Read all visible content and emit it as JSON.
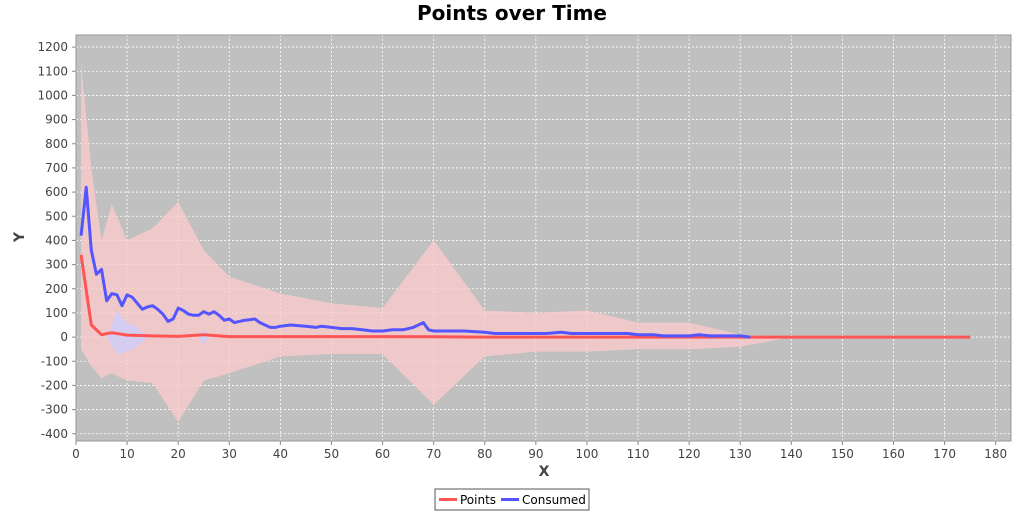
{
  "chart_data": {
    "type": "line",
    "title": "Points over Time",
    "xlabel": "X",
    "ylabel": "Y",
    "xlim": [
      0,
      183
    ],
    "ylim": [
      -430,
      1250
    ],
    "x_ticks": [
      0,
      10,
      20,
      30,
      40,
      50,
      60,
      70,
      80,
      90,
      100,
      110,
      120,
      130,
      140,
      150,
      160,
      170,
      180
    ],
    "y_ticks": [
      -400,
      -300,
      -200,
      -100,
      0,
      100,
      200,
      300,
      400,
      500,
      600,
      700,
      800,
      900,
      1000,
      1100,
      1200
    ],
    "grid": true,
    "legend_position": "bottom",
    "colors": {
      "plot_background": "#c0c0c0",
      "grid": "#ffffff",
      "points": "#ff5555",
      "consumed": "#5555ff",
      "points_band": "#ffcccc",
      "consumed_band": "#ccccff"
    },
    "series": [
      {
        "name": "Points",
        "color": "#ff5555",
        "x": [
          1,
          3,
          5,
          7,
          10,
          15,
          20,
          25,
          30,
          40,
          50,
          60,
          70,
          80,
          90,
          100,
          110,
          120,
          130,
          140,
          150,
          160,
          170,
          175
        ],
        "y": [
          340,
          50,
          10,
          18,
          8,
          5,
          3,
          10,
          2,
          2,
          2,
          2,
          1,
          0,
          0,
          0,
          0,
          0,
          0,
          0,
          0,
          0,
          0,
          0
        ],
        "band_upper": [
          1130,
          700,
          400,
          550,
          400,
          450,
          560,
          360,
          250,
          180,
          140,
          120,
          400,
          110,
          100,
          110,
          60,
          60,
          10,
          0,
          0,
          0,
          0,
          0
        ],
        "band_lower": [
          -50,
          -120,
          -170,
          -150,
          -180,
          -190,
          -350,
          -180,
          -150,
          -80,
          -70,
          -70,
          -280,
          -80,
          -60,
          -60,
          -50,
          -50,
          -40,
          0,
          0,
          0,
          0,
          0
        ]
      },
      {
        "name": "Consumed",
        "color": "#5555ff",
        "x": [
          1,
          2,
          3,
          4,
          5,
          6,
          7,
          8,
          9,
          10,
          11,
          12,
          13,
          14,
          15,
          16,
          17,
          18,
          19,
          20,
          21,
          22,
          23,
          24,
          25,
          26,
          27,
          28,
          29,
          30,
          31,
          32,
          33,
          34,
          35,
          36,
          37,
          38,
          39,
          40,
          42,
          45,
          47,
          48,
          50,
          52,
          54,
          56,
          58,
          60,
          62,
          64,
          66,
          68,
          69,
          70,
          72,
          74,
          76,
          80,
          82,
          85,
          88,
          90,
          92,
          95,
          97,
          100,
          103,
          105,
          108,
          110,
          113,
          115,
          118,
          120,
          122,
          124,
          126,
          128,
          130,
          132
        ],
        "y": [
          420,
          620,
          360,
          260,
          280,
          150,
          180,
          175,
          130,
          175,
          165,
          140,
          115,
          125,
          130,
          115,
          95,
          65,
          75,
          120,
          110,
          95,
          90,
          90,
          105,
          95,
          105,
          90,
          70,
          75,
          60,
          65,
          70,
          72,
          75,
          60,
          50,
          40,
          40,
          45,
          50,
          45,
          40,
          45,
          40,
          35,
          35,
          30,
          25,
          25,
          30,
          30,
          40,
          60,
          30,
          25,
          25,
          25,
          25,
          20,
          15,
          15,
          15,
          15,
          15,
          20,
          15,
          15,
          15,
          15,
          15,
          10,
          10,
          5,
          5,
          5,
          10,
          5,
          5,
          5,
          5,
          0
        ],
        "band_x": [
          6,
          8,
          10,
          12,
          14,
          24,
          25,
          26
        ],
        "band_upper": [
          0,
          110,
          60,
          40,
          0,
          0,
          30,
          0
        ],
        "band_lower": [
          0,
          -70,
          -60,
          -40,
          0,
          0,
          -30,
          0
        ]
      }
    ]
  }
}
